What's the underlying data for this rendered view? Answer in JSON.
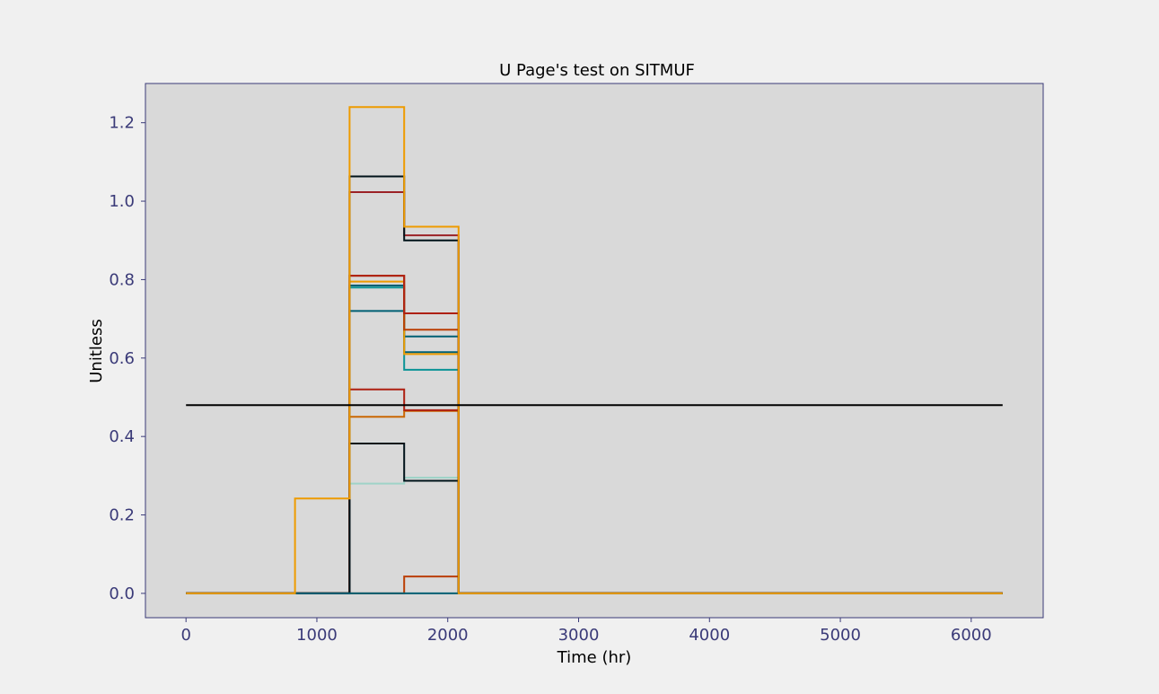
{
  "chart_data": {
    "type": "line",
    "title": "U Page's test on SITMUF",
    "xlabel": "Time (hr)",
    "ylabel": "Unitless",
    "xlim": [
      -310,
      6550
    ],
    "ylim": [
      -0.062,
      1.3
    ],
    "xticks": [
      0,
      1000,
      2000,
      3000,
      4000,
      5000,
      6000
    ],
    "yticks": [
      0.0,
      0.2,
      0.4,
      0.6,
      0.8,
      1.0,
      1.2
    ],
    "ytick_labels": [
      "0.0",
      "0.2",
      "0.4",
      "0.6",
      "0.8",
      "1.0",
      "1.2"
    ],
    "grid": false,
    "plot_background": "#d9d9d9",
    "figure_background": "#f0f0f0",
    "axes_edge_color": "#3a3a78",
    "threshold": {
      "value": 0.48,
      "x": [
        0,
        6240
      ],
      "color": "#000000"
    },
    "step_edges": [
      0,
      833,
      1250,
      1667,
      2083,
      6240
    ],
    "series": [
      {
        "color": "#9fd3c7",
        "values": [
          0,
          0,
          0.28,
          0.295,
          0
        ]
      },
      {
        "color": "#0a9396",
        "values": [
          0,
          0,
          0.78,
          0.57,
          0
        ]
      },
      {
        "color": "#005f73",
        "values": [
          0,
          0,
          0.72,
          0.655,
          0
        ]
      },
      {
        "color": "#005f73",
        "values": [
          0,
          0,
          0.785,
          0.615,
          0
        ]
      },
      {
        "color": "#ee9b00",
        "values": [
          0,
          0,
          0.795,
          0.61,
          0
        ]
      },
      {
        "color": "#ca6702",
        "values": [
          0,
          0,
          0.45,
          0.465,
          0
        ]
      },
      {
        "color": "#bb3e03",
        "values": [
          0,
          0,
          0.81,
          0.672,
          0
        ]
      },
      {
        "color": "#bb3e03",
        "values": [
          0,
          0,
          0,
          0.043,
          0
        ]
      },
      {
        "color": "#ae2012",
        "values": [
          0,
          0,
          0.52,
          0.467,
          0
        ]
      },
      {
        "color": "#ae2012",
        "values": [
          0,
          0,
          0.81,
          0.714,
          0
        ]
      },
      {
        "color": "#9b2226",
        "values": [
          0,
          0,
          1.023,
          0.913,
          0
        ]
      },
      {
        "color": "#001219",
        "values": [
          0,
          0,
          0.382,
          0.287,
          0
        ]
      },
      {
        "color": "#001219",
        "values": [
          0,
          0,
          1.063,
          0.9,
          0
        ]
      },
      {
        "color": "#005f73",
        "values": [
          0,
          0,
          0,
          0,
          0
        ]
      },
      {
        "color": "#ee9b00",
        "values": [
          0,
          0.242,
          1.24,
          0.935,
          0
        ]
      }
    ]
  }
}
